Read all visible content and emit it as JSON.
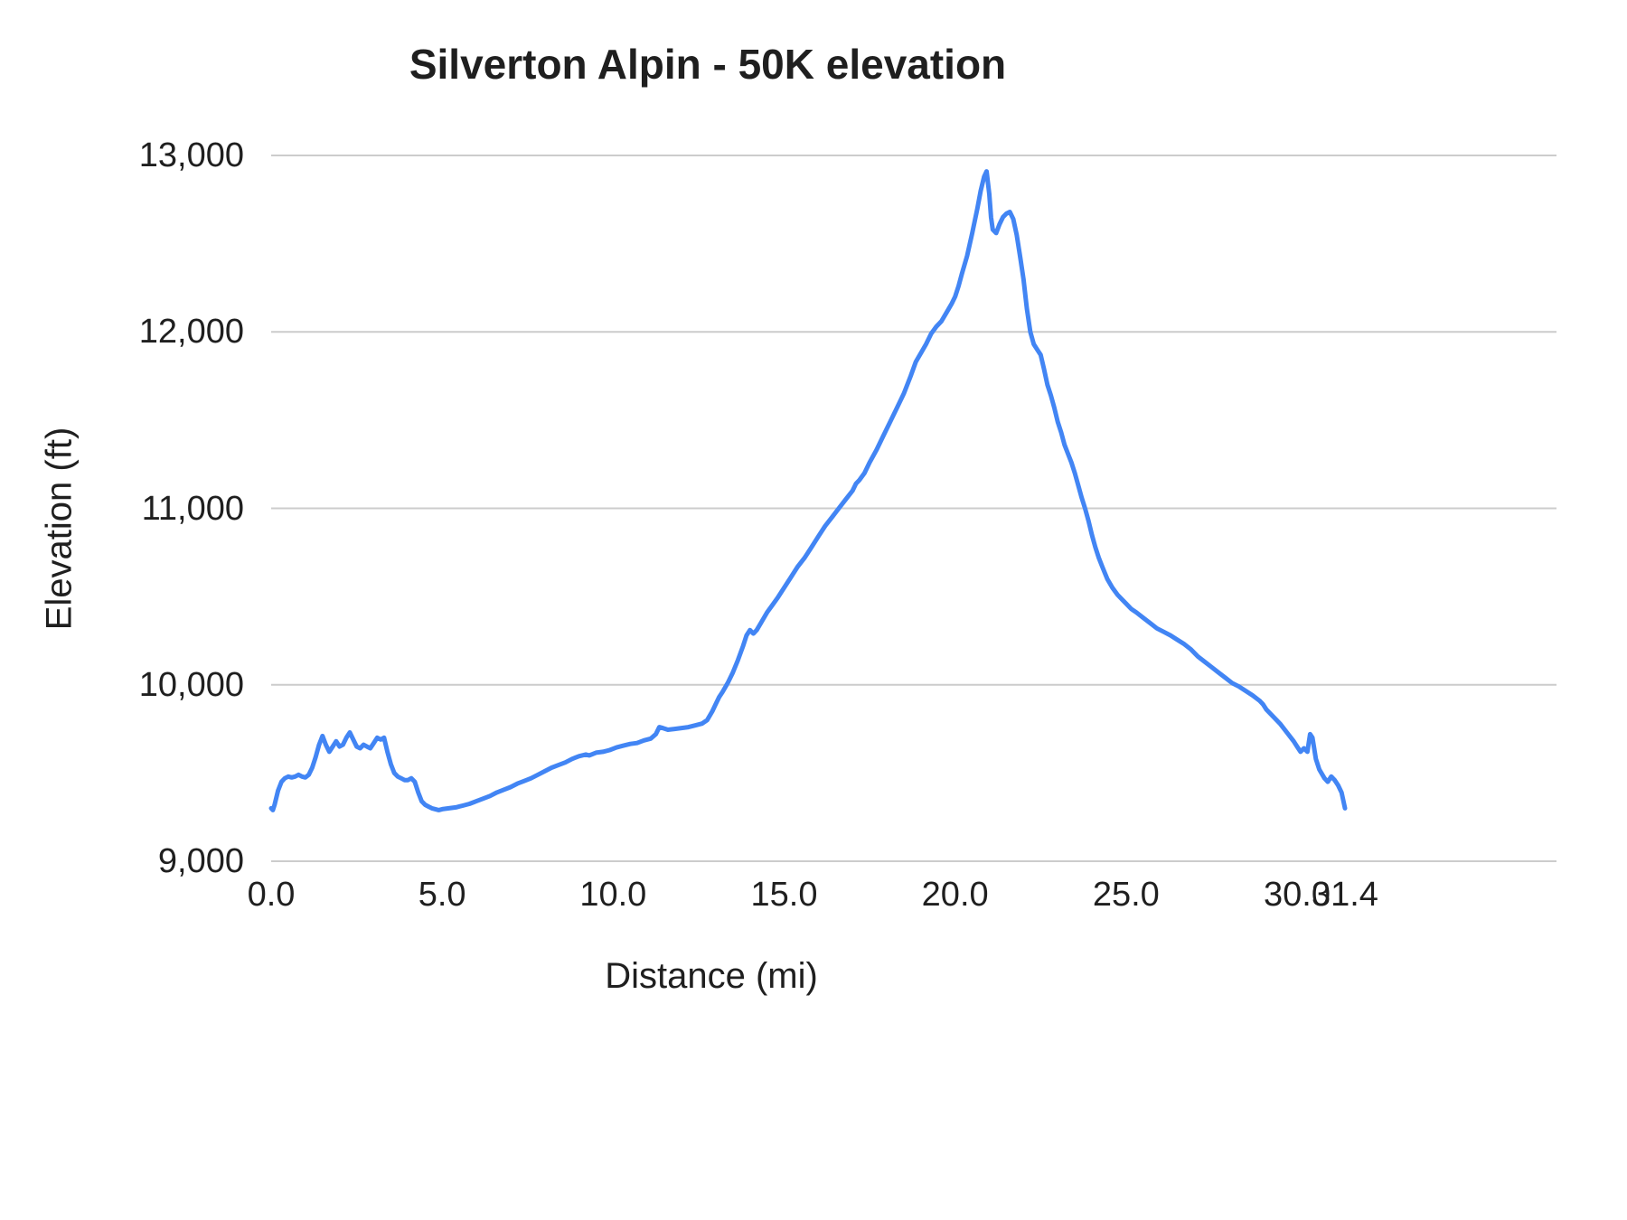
{
  "chart_data": {
    "type": "line",
    "title": "Silverton Alpin - 50K elevation",
    "xlabel": "Distance (mi)",
    "ylabel": "Elevation (ft)",
    "xlim": [
      0,
      31.4
    ],
    "ylim": [
      9000,
      13000
    ],
    "grid": "horizontal",
    "legend": "none",
    "line_color": "#4285f4",
    "gridline_color": "#cccccc",
    "x_ticks": [
      {
        "label": "0.0",
        "value": 0
      },
      {
        "label": "5.0",
        "value": 5
      },
      {
        "label": "10.0",
        "value": 10
      },
      {
        "label": "15.0",
        "value": 15
      },
      {
        "label": "20.0",
        "value": 20
      },
      {
        "label": "25.0",
        "value": 25
      },
      {
        "label": "30.0",
        "value": 30
      },
      {
        "label": "31.4",
        "value": 31.4
      }
    ],
    "y_ticks": [
      {
        "label": "9,000",
        "value": 9000
      },
      {
        "label": "10,000",
        "value": 10000
      },
      {
        "label": "11,000",
        "value": 11000
      },
      {
        "label": "12,000",
        "value": 12000
      },
      {
        "label": "13,000",
        "value": 13000
      }
    ],
    "series": [
      {
        "name": "Elevation",
        "points": [
          [
            0.0,
            9300
          ],
          [
            0.05,
            9290
          ],
          [
            0.1,
            9320
          ],
          [
            0.2,
            9400
          ],
          [
            0.3,
            9450
          ],
          [
            0.4,
            9470
          ],
          [
            0.5,
            9480
          ],
          [
            0.6,
            9475
          ],
          [
            0.7,
            9480
          ],
          [
            0.8,
            9490
          ],
          [
            0.9,
            9480
          ],
          [
            1.0,
            9475
          ],
          [
            1.1,
            9490
          ],
          [
            1.2,
            9530
          ],
          [
            1.3,
            9590
          ],
          [
            1.4,
            9660
          ],
          [
            1.5,
            9710
          ],
          [
            1.6,
            9660
          ],
          [
            1.7,
            9620
          ],
          [
            1.8,
            9650
          ],
          [
            1.9,
            9680
          ],
          [
            2.0,
            9650
          ],
          [
            2.1,
            9660
          ],
          [
            2.2,
            9700
          ],
          [
            2.3,
            9730
          ],
          [
            2.4,
            9690
          ],
          [
            2.5,
            9650
          ],
          [
            2.6,
            9640
          ],
          [
            2.7,
            9660
          ],
          [
            2.8,
            9650
          ],
          [
            2.9,
            9640
          ],
          [
            3.0,
            9670
          ],
          [
            3.1,
            9700
          ],
          [
            3.2,
            9690
          ],
          [
            3.3,
            9700
          ],
          [
            3.4,
            9620
          ],
          [
            3.5,
            9550
          ],
          [
            3.6,
            9500
          ],
          [
            3.7,
            9480
          ],
          [
            3.8,
            9470
          ],
          [
            3.9,
            9460
          ],
          [
            4.0,
            9460
          ],
          [
            4.1,
            9470
          ],
          [
            4.2,
            9450
          ],
          [
            4.3,
            9390
          ],
          [
            4.4,
            9340
          ],
          [
            4.5,
            9320
          ],
          [
            4.6,
            9310
          ],
          [
            4.7,
            9300
          ],
          [
            4.8,
            9295
          ],
          [
            4.9,
            9290
          ],
          [
            5.0,
            9295
          ],
          [
            5.2,
            9300
          ],
          [
            5.4,
            9305
          ],
          [
            5.6,
            9315
          ],
          [
            5.8,
            9325
          ],
          [
            6.0,
            9340
          ],
          [
            6.2,
            9355
          ],
          [
            6.4,
            9370
          ],
          [
            6.6,
            9390
          ],
          [
            6.8,
            9405
          ],
          [
            7.0,
            9420
          ],
          [
            7.2,
            9440
          ],
          [
            7.4,
            9455
          ],
          [
            7.6,
            9470
          ],
          [
            7.8,
            9490
          ],
          [
            8.0,
            9510
          ],
          [
            8.2,
            9530
          ],
          [
            8.4,
            9545
          ],
          [
            8.6,
            9560
          ],
          [
            8.8,
            9580
          ],
          [
            9.0,
            9595
          ],
          [
            9.2,
            9605
          ],
          [
            9.3,
            9600
          ],
          [
            9.5,
            9615
          ],
          [
            9.7,
            9620
          ],
          [
            9.9,
            9630
          ],
          [
            10.1,
            9645
          ],
          [
            10.3,
            9655
          ],
          [
            10.5,
            9665
          ],
          [
            10.7,
            9670
          ],
          [
            10.9,
            9685
          ],
          [
            11.1,
            9695
          ],
          [
            11.25,
            9720
          ],
          [
            11.35,
            9760
          ],
          [
            11.45,
            9755
          ],
          [
            11.6,
            9745
          ],
          [
            11.8,
            9750
          ],
          [
            12.0,
            9755
          ],
          [
            12.2,
            9760
          ],
          [
            12.4,
            9770
          ],
          [
            12.6,
            9780
          ],
          [
            12.75,
            9800
          ],
          [
            12.9,
            9850
          ],
          [
            13.0,
            9890
          ],
          [
            13.1,
            9930
          ],
          [
            13.2,
            9960
          ],
          [
            13.35,
            10010
          ],
          [
            13.5,
            10070
          ],
          [
            13.65,
            10140
          ],
          [
            13.8,
            10220
          ],
          [
            13.9,
            10280
          ],
          [
            14.0,
            10310
          ],
          [
            14.1,
            10290
          ],
          [
            14.2,
            10310
          ],
          [
            14.35,
            10360
          ],
          [
            14.5,
            10410
          ],
          [
            14.65,
            10450
          ],
          [
            14.8,
            10490
          ],
          [
            15.0,
            10550
          ],
          [
            15.2,
            10610
          ],
          [
            15.4,
            10670
          ],
          [
            15.6,
            10720
          ],
          [
            15.8,
            10780
          ],
          [
            16.0,
            10840
          ],
          [
            16.2,
            10900
          ],
          [
            16.4,
            10950
          ],
          [
            16.6,
            11000
          ],
          [
            16.8,
            11050
          ],
          [
            17.0,
            11100
          ],
          [
            17.1,
            11140
          ],
          [
            17.2,
            11160
          ],
          [
            17.35,
            11200
          ],
          [
            17.5,
            11260
          ],
          [
            17.7,
            11330
          ],
          [
            17.9,
            11410
          ],
          [
            18.1,
            11490
          ],
          [
            18.3,
            11570
          ],
          [
            18.5,
            11650
          ],
          [
            18.7,
            11750
          ],
          [
            18.85,
            11830
          ],
          [
            19.0,
            11880
          ],
          [
            19.15,
            11930
          ],
          [
            19.3,
            11990
          ],
          [
            19.45,
            12030
          ],
          [
            19.6,
            12060
          ],
          [
            19.75,
            12110
          ],
          [
            19.9,
            12160
          ],
          [
            20.0,
            12200
          ],
          [
            20.1,
            12260
          ],
          [
            20.2,
            12330
          ],
          [
            20.35,
            12430
          ],
          [
            20.5,
            12560
          ],
          [
            20.65,
            12700
          ],
          [
            20.75,
            12800
          ],
          [
            20.85,
            12880
          ],
          [
            20.92,
            12910
          ],
          [
            21.0,
            12780
          ],
          [
            21.05,
            12650
          ],
          [
            21.1,
            12580
          ],
          [
            21.2,
            12560
          ],
          [
            21.3,
            12610
          ],
          [
            21.4,
            12650
          ],
          [
            21.5,
            12670
          ],
          [
            21.6,
            12680
          ],
          [
            21.7,
            12640
          ],
          [
            21.8,
            12550
          ],
          [
            21.9,
            12430
          ],
          [
            22.0,
            12300
          ],
          [
            22.1,
            12130
          ],
          [
            22.2,
            12000
          ],
          [
            22.3,
            11930
          ],
          [
            22.4,
            11900
          ],
          [
            22.5,
            11870
          ],
          [
            22.6,
            11790
          ],
          [
            22.7,
            11700
          ],
          [
            22.8,
            11640
          ],
          [
            22.9,
            11570
          ],
          [
            23.0,
            11490
          ],
          [
            23.1,
            11430
          ],
          [
            23.2,
            11360
          ],
          [
            23.3,
            11310
          ],
          [
            23.4,
            11260
          ],
          [
            23.5,
            11200
          ],
          [
            23.6,
            11130
          ],
          [
            23.7,
            11060
          ],
          [
            23.8,
            11000
          ],
          [
            23.9,
            10930
          ],
          [
            24.0,
            10850
          ],
          [
            24.1,
            10780
          ],
          [
            24.2,
            10720
          ],
          [
            24.3,
            10670
          ],
          [
            24.45,
            10600
          ],
          [
            24.6,
            10550
          ],
          [
            24.75,
            10510
          ],
          [
            24.9,
            10480
          ],
          [
            25.0,
            10460
          ],
          [
            25.15,
            10430
          ],
          [
            25.3,
            10410
          ],
          [
            25.5,
            10380
          ],
          [
            25.7,
            10350
          ],
          [
            25.9,
            10320
          ],
          [
            26.1,
            10300
          ],
          [
            26.3,
            10280
          ],
          [
            26.5,
            10255
          ],
          [
            26.7,
            10230
          ],
          [
            26.9,
            10200
          ],
          [
            27.0,
            10180
          ],
          [
            27.1,
            10160
          ],
          [
            27.3,
            10130
          ],
          [
            27.5,
            10100
          ],
          [
            27.7,
            10070
          ],
          [
            27.9,
            10040
          ],
          [
            28.1,
            10010
          ],
          [
            28.3,
            9990
          ],
          [
            28.5,
            9965
          ],
          [
            28.7,
            9940
          ],
          [
            28.9,
            9910
          ],
          [
            29.0,
            9890
          ],
          [
            29.1,
            9860
          ],
          [
            29.3,
            9820
          ],
          [
            29.5,
            9780
          ],
          [
            29.7,
            9730
          ],
          [
            29.9,
            9680
          ],
          [
            30.0,
            9650
          ],
          [
            30.1,
            9620
          ],
          [
            30.2,
            9640
          ],
          [
            30.3,
            9620
          ],
          [
            30.38,
            9720
          ],
          [
            30.45,
            9700
          ],
          [
            30.55,
            9580
          ],
          [
            30.65,
            9520
          ],
          [
            30.8,
            9470
          ],
          [
            30.9,
            9450
          ],
          [
            31.0,
            9480
          ],
          [
            31.1,
            9460
          ],
          [
            31.2,
            9430
          ],
          [
            31.3,
            9390
          ],
          [
            31.4,
            9300
          ]
        ]
      }
    ]
  }
}
